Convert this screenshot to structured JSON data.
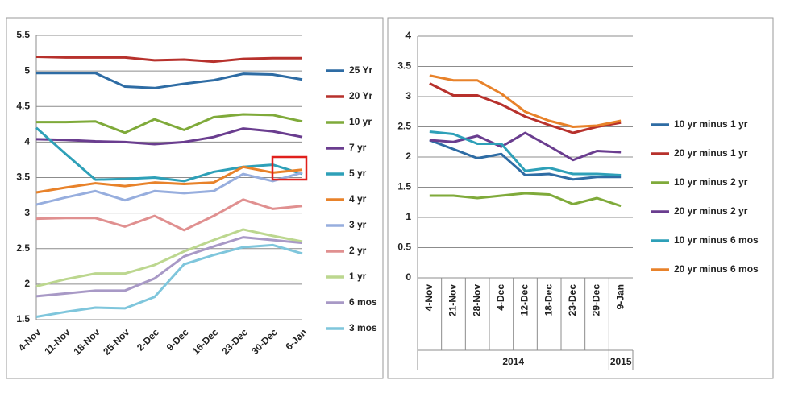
{
  "chart_data": [
    {
      "type": "line",
      "categories": [
        "4-Nov",
        "11-Nov",
        "18-Nov",
        "25-Nov",
        "2-Dec",
        "9-Dec",
        "16-Dec",
        "23-Dec",
        "30-Dec",
        "6-Jan"
      ],
      "ylim": [
        1.5,
        5.5
      ],
      "yticks": [
        1.5,
        2,
        2.5,
        3,
        3.5,
        4,
        4.5,
        5,
        5.5
      ],
      "grid": true,
      "legend": "right",
      "series": [
        {
          "name": "25 Yr",
          "color": "#2e6ca4",
          "values": [
            4.97,
            4.97,
            4.97,
            4.78,
            4.76,
            4.82,
            4.87,
            4.96,
            4.95,
            4.88
          ]
        },
        {
          "name": "20 Yr",
          "color": "#b7312c",
          "values": [
            5.2,
            5.19,
            5.19,
            5.19,
            5.15,
            5.16,
            5.13,
            5.17,
            5.18,
            5.18
          ]
        },
        {
          "name": "10 yr",
          "color": "#7faa3a",
          "values": [
            4.28,
            4.28,
            4.29,
            4.13,
            4.32,
            4.17,
            4.35,
            4.39,
            4.38,
            4.29
          ]
        },
        {
          "name": "7 yr",
          "color": "#6a3d8f",
          "values": [
            4.04,
            4.03,
            4.01,
            4.0,
            3.97,
            4.0,
            4.07,
            4.19,
            4.15,
            4.07
          ]
        },
        {
          "name": "5 yr",
          "color": "#2ea0b8",
          "values": [
            4.2,
            3.83,
            3.47,
            3.48,
            3.5,
            3.45,
            3.58,
            3.65,
            3.68,
            3.55
          ]
        },
        {
          "name": "4 yr",
          "color": "#e8822a",
          "values": [
            3.29,
            3.36,
            3.42,
            3.38,
            3.43,
            3.41,
            3.43,
            3.65,
            3.57,
            3.61
          ]
        },
        {
          "name": "3 yr",
          "color": "#97aede",
          "values": [
            3.12,
            3.22,
            3.31,
            3.18,
            3.31,
            3.28,
            3.31,
            3.55,
            3.45,
            3.57
          ]
        },
        {
          "name": "2 yr",
          "color": "#e09090",
          "values": [
            2.92,
            2.93,
            2.93,
            2.81,
            2.96,
            2.76,
            2.96,
            3.19,
            3.06,
            3.1
          ]
        },
        {
          "name": "1  yr",
          "color": "#bcd78f",
          "values": [
            1.97,
            2.07,
            2.15,
            2.15,
            2.27,
            2.46,
            2.62,
            2.77,
            2.68,
            2.6
          ]
        },
        {
          "name": "6 mos",
          "color": "#a899c6",
          "values": [
            1.83,
            1.87,
            1.91,
            1.91,
            2.08,
            2.39,
            2.53,
            2.66,
            2.62,
            2.58
          ]
        },
        {
          "name": "3 mos",
          "color": "#7fc6dc",
          "values": [
            1.54,
            1.61,
            1.67,
            1.66,
            1.82,
            2.28,
            2.41,
            2.52,
            2.55,
            2.43
          ]
        }
      ]
    },
    {
      "type": "line",
      "categories": [
        "4-Nov",
        "21-Nov",
        "28-Nov",
        "4-Dec",
        "12-Dec",
        "18-Dec",
        "23-Dec",
        "29-Dec",
        "9-Jan"
      ],
      "groups": [
        {
          "label": "2014",
          "count": 8
        },
        {
          "label": "2015",
          "count": 1
        }
      ],
      "ylim": [
        0,
        4
      ],
      "yticks": [
        0,
        0.5,
        1,
        1.5,
        2,
        2.5,
        3,
        3.5,
        4
      ],
      "grid": true,
      "legend": "right",
      "series": [
        {
          "name": "10 yr minus 1 yr",
          "color": "#2e6ca4",
          "values": [
            2.28,
            2.13,
            1.98,
            2.05,
            1.7,
            1.72,
            1.63,
            1.67,
            1.67
          ]
        },
        {
          "name": "20 yr minus 1 yr",
          "color": "#b7312c",
          "values": [
            3.22,
            3.02,
            3.02,
            2.87,
            2.67,
            2.53,
            2.4,
            2.5,
            2.57
          ]
        },
        {
          "name": "10 yr minus 2 yr",
          "color": "#7faa3a",
          "values": [
            1.36,
            1.36,
            1.32,
            1.36,
            1.4,
            1.38,
            1.22,
            1.32,
            1.19
          ]
        },
        {
          "name": "20 yr minus 2 yr",
          "color": "#6a3d8f",
          "values": [
            2.28,
            2.25,
            2.35,
            2.17,
            2.4,
            2.18,
            1.95,
            2.1,
            2.08
          ]
        },
        {
          "name": "10 yr minus 6 mos",
          "color": "#2ea0b8",
          "values": [
            2.42,
            2.38,
            2.22,
            2.22,
            1.77,
            1.82,
            1.72,
            1.72,
            1.7
          ]
        },
        {
          "name": "20 yr minus 6 mos",
          "color": "#e8822a",
          "values": [
            3.35,
            3.27,
            3.27,
            3.05,
            2.75,
            2.6,
            2.5,
            2.52,
            2.6
          ]
        }
      ]
    }
  ]
}
